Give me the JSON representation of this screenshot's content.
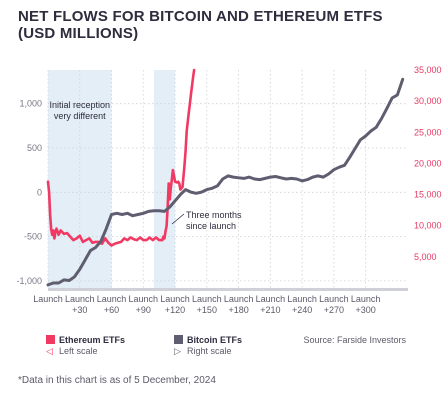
{
  "chart_data": {
    "type": "line",
    "title_lines": [
      "NET FLOWS FOR BITCOIN AND ETHEREUM ETFS",
      "(USD MILLIONS)"
    ],
    "x_ticks": [
      "Launch",
      "Launch\n+30",
      "Launch\n+60",
      "Launch\n+90",
      "Launch\n+120",
      "Launch\n+150",
      "Launch\n+180",
      "Launch\n+210",
      "Launch\n+240",
      "Launch\n+270",
      "Launch\n+300"
    ],
    "y_left": {
      "ticks": [
        1000,
        500,
        0,
        -500,
        -1000
      ],
      "tick_labels": [
        "1,000",
        "500",
        "0",
        "-500",
        "-1,000"
      ],
      "ylim": [
        -1080,
        1380
      ]
    },
    "y_right": {
      "ticks": [
        35000,
        30000,
        25000,
        20000,
        15000,
        10000,
        5000
      ],
      "tick_labels": [
        "35,000",
        "30,000",
        "25,000",
        "20,000",
        "15,000",
        "10,000",
        "5,000"
      ],
      "ylim": [
        0,
        35000
      ]
    },
    "grid": "dotted",
    "series": [
      {
        "name": "Ethereum ETFs",
        "axis": "left",
        "color": "#f03a64",
        "x": [
          0,
          1,
          2,
          3,
          4,
          5,
          6,
          7,
          8,
          9,
          10,
          12,
          15,
          18,
          21,
          24,
          27,
          30,
          33,
          36,
          39,
          42,
          45,
          48,
          51,
          54,
          57,
          60,
          63,
          66,
          69,
          72,
          75,
          78,
          81,
          84,
          87,
          90,
          93,
          96,
          99,
          102,
          105,
          108,
          109,
          110,
          111,
          112,
          113,
          114,
          115,
          116,
          117,
          118,
          120,
          122,
          123,
          124,
          125,
          127,
          128,
          129,
          130,
          131,
          132,
          133,
          134,
          135,
          136,
          137,
          138
        ],
        "values": [
          120,
          0,
          -250,
          -420,
          -480,
          -430,
          -520,
          -450,
          -410,
          -440,
          -480,
          -430,
          -470,
          -460,
          -500,
          -540,
          -520,
          -490,
          -560,
          -540,
          -520,
          -570,
          -560,
          -560,
          -580,
          -520,
          -570,
          -600,
          -580,
          -570,
          -560,
          -520,
          -540,
          -510,
          -530,
          -540,
          -510,
          -540,
          -540,
          -510,
          -540,
          -510,
          -540,
          -540,
          -500,
          -520,
          -440,
          -380,
          -180,
          100,
          -80,
          50,
          150,
          250,
          120,
          110,
          120,
          100,
          30,
          60,
          180,
          320,
          470,
          690,
          800,
          900,
          1000,
          1100,
          1200,
          1300,
          1380
        ]
      },
      {
        "name": "Bitcoin ETFs",
        "axis": "right",
        "color": "#5f5d70",
        "x": [
          0,
          5,
          10,
          15,
          20,
          25,
          30,
          35,
          40,
          45,
          50,
          55,
          60,
          65,
          70,
          75,
          80,
          85,
          90,
          95,
          100,
          105,
          110,
          115,
          120,
          125,
          130,
          135,
          140,
          145,
          150,
          155,
          160,
          165,
          170,
          175,
          180,
          185,
          190,
          195,
          200,
          205,
          210,
          215,
          220,
          225,
          230,
          235,
          240,
          245,
          250,
          255,
          260,
          265,
          270,
          275,
          280,
          285,
          290,
          295,
          300,
          305,
          310,
          315,
          320,
          325,
          330,
          335
        ],
        "values": [
          500,
          800,
          800,
          1300,
          1200,
          1800,
          3000,
          4500,
          6000,
          6500,
          7500,
          9500,
          11800,
          12000,
          11800,
          12000,
          11600,
          11800,
          12000,
          12300,
          12400,
          12400,
          12300,
          13000,
          14000,
          15000,
          15800,
          15400,
          15200,
          15400,
          15800,
          16000,
          16400,
          17500,
          18000,
          17800,
          17700,
          17600,
          17800,
          17500,
          17400,
          17600,
          17800,
          17900,
          17700,
          17500,
          17600,
          17500,
          17200,
          17400,
          17800,
          18000,
          17800,
          18300,
          19000,
          19400,
          19700,
          21000,
          22400,
          23800,
          24400,
          25200,
          25800,
          27200,
          28800,
          30500,
          31000,
          33500
        ]
      }
    ],
    "annotations": [
      {
        "lines": [
          "Initial reception",
          "very different"
        ]
      },
      {
        "lines": [
          "Three months",
          "since launch"
        ]
      }
    ],
    "shaded_ranges_x": [
      [
        0,
        60
      ],
      [
        100,
        120
      ]
    ]
  },
  "legend": {
    "eth": {
      "name": "Ethereum ETFs",
      "scale": "Left scale",
      "color": "#f03a64"
    },
    "btc": {
      "name": "Bitcoin ETFs",
      "scale": "Right scale",
      "color": "#5f5d70"
    }
  },
  "source": "Source: Farside Investors",
  "footnote": "*Data in this chart is as of 5 December, 2024"
}
